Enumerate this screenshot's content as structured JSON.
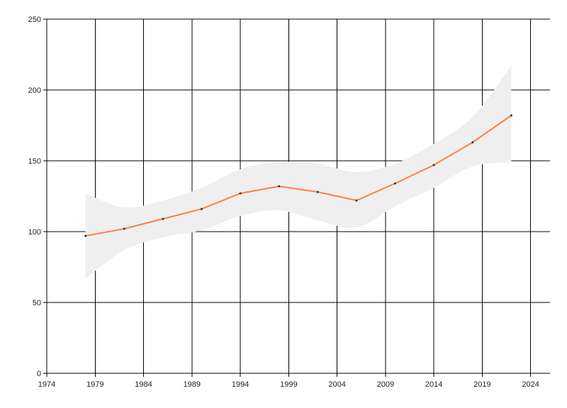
{
  "chart_data": {
    "type": "line",
    "title": "",
    "xlabel": "",
    "ylabel": "",
    "xlim": [
      1974,
      2026
    ],
    "ylim": [
      0,
      250
    ],
    "x_ticks": [
      1974,
      1979,
      1984,
      1989,
      1994,
      1999,
      2004,
      2009,
      2014,
      2019,
      2024
    ],
    "y_ticks": [
      0,
      50,
      100,
      150,
      200,
      250
    ],
    "grid": true,
    "legend": "none",
    "colors": {
      "line": "#ff7f3f",
      "band": "#efefef",
      "marker": "#333333",
      "grid": "#000000"
    },
    "x": [
      1978,
      1982,
      1986,
      1990,
      1994,
      1998,
      2002,
      2006,
      2010,
      2014,
      2018,
      2022
    ],
    "series": [
      {
        "values": [
          97,
          102,
          109,
          116,
          127,
          132,
          128,
          122,
          134,
          147,
          163,
          182
        ]
      }
    ],
    "band_upper": [
      127,
      117,
      122,
      131,
      144,
      149,
      148,
      142,
      148,
      162,
      181,
      217
    ],
    "band_lower": [
      67,
      87,
      96,
      101,
      111,
      115,
      108,
      103,
      118,
      131,
      146,
      149
    ]
  }
}
